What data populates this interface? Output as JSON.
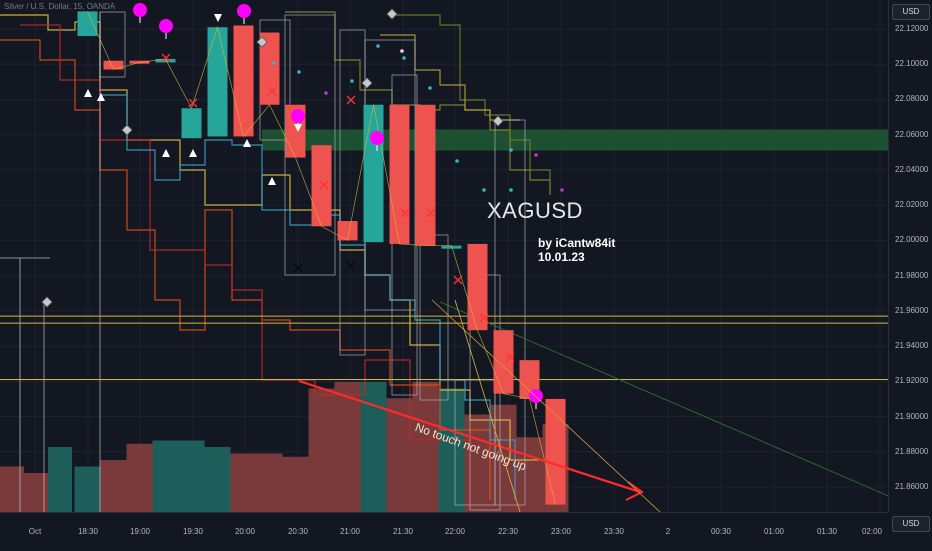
{
  "header": {
    "symbol_legend": "Silver / U.S. Dollar, 15, OANDA"
  },
  "currency": {
    "top": "USD",
    "bottom": "USD"
  },
  "price_axis": {
    "ticks": [
      "22.12000",
      "22.10000",
      "22.08000",
      "22.06000",
      "22.04000",
      "22.02000",
      "22.00000",
      "21.98000",
      "21.96000",
      "21.94000",
      "21.92000",
      "21.90000",
      "21.88000",
      "21.86000"
    ]
  },
  "time_axis": {
    "ticks": [
      "Oct",
      "18:30",
      "19:00",
      "19:30",
      "20:00",
      "20:30",
      "21:00",
      "21:30",
      "22:00",
      "22:30",
      "23:00",
      "23:30",
      "2",
      "00:30",
      "01:00",
      "01:30",
      "02:00"
    ]
  },
  "annotations": {
    "symbol": "XAGUSD",
    "author": "by iCantw84it",
    "date": "10.01.23",
    "note": "No touch not going up"
  },
  "colors": {
    "background": "#131722",
    "candle_up": "#26a69a",
    "candle_down": "#ef5350",
    "zone": "#1f5a33",
    "volume_up": "#1e5e5a",
    "volume_down": "#7a3a3c",
    "marker_pink": "#ff00ff",
    "marker_x": "#ff3333",
    "trend_arrow": "#ff2b2b",
    "level_line": "#d4b83a"
  },
  "chart_data": {
    "type": "candlestick",
    "timeframe": "15",
    "x": [
      "18:15",
      "18:30",
      "18:45",
      "19:00",
      "19:15",
      "19:30",
      "19:45",
      "20:00",
      "20:15",
      "20:30",
      "20:45",
      "21:00",
      "21:15",
      "21:30",
      "21:45",
      "22:00",
      "22:15",
      "22:30",
      "22:45"
    ],
    "open": [
      22.116,
      22.102,
      22.102,
      22.101,
      22.058,
      22.059,
      22.122,
      22.118,
      22.077,
      22.054,
      22.011,
      21.999,
      22.077,
      22.077,
      21.997,
      21.998,
      21.949,
      21.932,
      21.91
    ],
    "close": [
      22.13,
      22.097,
      22.101,
      22.103,
      22.075,
      22.121,
      22.059,
      22.077,
      22.047,
      22.008,
      22.0,
      22.077,
      21.998,
      21.997,
      21.997,
      21.949,
      21.913,
      21.91,
      21.85
    ],
    "volume": [
      14,
      16,
      21,
      22,
      22,
      20,
      18,
      18,
      17,
      38,
      40,
      40,
      35,
      40,
      38,
      30,
      33,
      23,
      27
    ],
    "ylim": [
      21.852,
      22.137
    ],
    "levels": [
      21.957,
      21.953,
      21.921
    ],
    "zone": [
      22.051,
      22.063
    ]
  }
}
